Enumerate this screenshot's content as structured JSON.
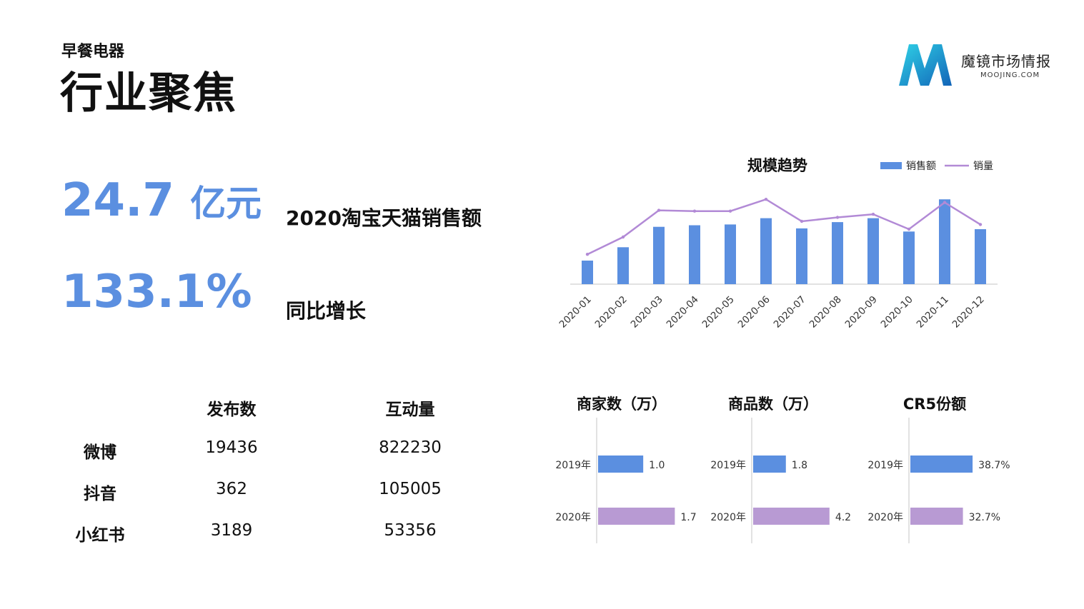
{
  "header": {
    "subtitle": "早餐电器",
    "title": "行业聚焦"
  },
  "logo": {
    "letter": "M",
    "name": "魔镜市场情报",
    "url": "MOOJING.COM"
  },
  "kpis": [
    {
      "value": "24.7",
      "unit": "亿元",
      "label": "2020淘宝天猫销售额"
    },
    {
      "value": "133.1%",
      "unit": "",
      "label": "同比增长"
    }
  ],
  "social": {
    "columns": [
      "发布数",
      "互动量"
    ],
    "rows": [
      {
        "platform": "微博",
        "posts": "19436",
        "interactions": "822230"
      },
      {
        "platform": "抖音",
        "posts": "362",
        "interactions": "105005"
      },
      {
        "platform": "小红书",
        "posts": "3189",
        "interactions": "53356"
      }
    ]
  },
  "colors": {
    "accent_blue": "#5b8fe0",
    "line_purple": "#b28ad6",
    "bar_purple": "#b89ad3",
    "axis": "#d9d9d9"
  },
  "chart_data": [
    {
      "type": "bar",
      "title": "规模趋势",
      "categories": [
        "2020-01",
        "2020-02",
        "2020-03",
        "2020-04",
        "2020-05",
        "2020-06",
        "2020-07",
        "2020-08",
        "2020-09",
        "2020-10",
        "2020-11",
        "2020-12"
      ],
      "series": [
        {
          "name": "销售额",
          "kind": "bar",
          "values": [
            30,
            47,
            73,
            75,
            76,
            84,
            71,
            79,
            84,
            67,
            108,
            70
          ]
        },
        {
          "name": "销量",
          "kind": "line",
          "values": [
            38,
            60,
            94,
            93,
            93,
            108,
            80,
            85,
            89,
            70,
            104,
            76
          ]
        }
      ],
      "legend": "top-right",
      "grid": false
    },
    {
      "type": "bar",
      "orientation": "horizontal",
      "title": "商家数（万）",
      "categories": [
        "2019年",
        "2020年"
      ],
      "values": [
        1.0,
        1.7
      ],
      "labels": [
        "1.0",
        "1.7"
      ],
      "xlim": [
        0,
        1.9
      ]
    },
    {
      "type": "bar",
      "orientation": "horizontal",
      "title": "商品数（万）",
      "categories": [
        "2019年",
        "2020年"
      ],
      "values": [
        1.8,
        4.2
      ],
      "labels": [
        "1.8",
        "4.2"
      ],
      "xlim": [
        0,
        4.6
      ]
    },
    {
      "type": "bar",
      "orientation": "horizontal",
      "title": "CR5份额",
      "categories": [
        "2019年",
        "2020年"
      ],
      "values": [
        38.7,
        32.7
      ],
      "labels": [
        "38.7%",
        "32.7%"
      ],
      "xlim": [
        0,
        40
      ]
    }
  ]
}
